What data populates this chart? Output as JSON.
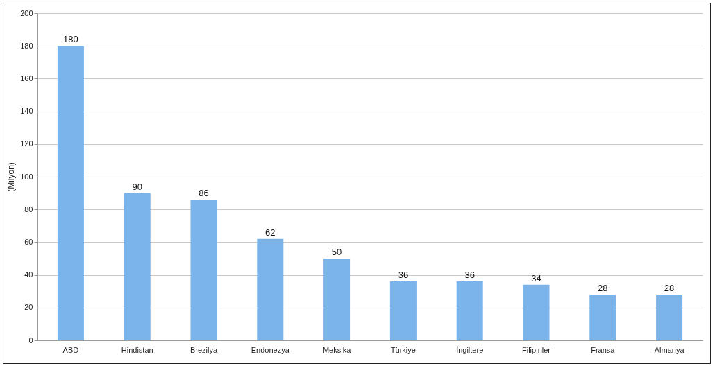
{
  "chart_data": {
    "type": "bar",
    "ylabel": "(Milyon)",
    "categories": [
      "ABD",
      "Hindistan",
      "Brezilya",
      "Endonezya",
      "Meksika",
      "Türkiye",
      "İngiltere",
      "Filipinler",
      "Fransa",
      "Almanya"
    ],
    "values": [
      180,
      90,
      86,
      62,
      50,
      36,
      36,
      34,
      28,
      28
    ],
    "color": "#7ab4ea",
    "ylim": [
      0,
      200
    ],
    "yticks": [
      0,
      20,
      40,
      60,
      80,
      100,
      120,
      140,
      160,
      180,
      200
    ],
    "grid": "y",
    "data_labels": true
  }
}
